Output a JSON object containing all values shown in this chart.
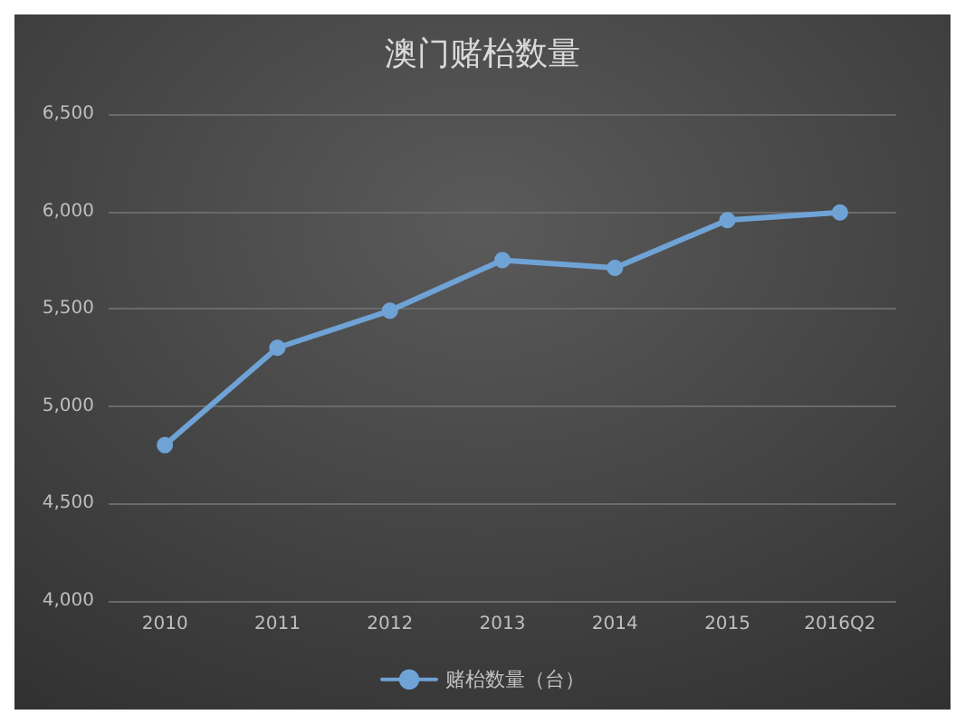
{
  "chart_data": {
    "type": "line",
    "title": "澳门赌枱数量",
    "categories": [
      "2010",
      "2011",
      "2012",
      "2013",
      "2014",
      "2015",
      "2016Q2"
    ],
    "series": [
      {
        "name": "赌枱数量（台）",
        "color": "#6fa3d6",
        "values": [
          4800,
          5300,
          5490,
          5750,
          5710,
          5955,
          5995
        ]
      }
    ],
    "ylim": [
      4000,
      6500
    ],
    "yticks": [
      {
        "value": 4000,
        "label": "4,000"
      },
      {
        "value": 4500,
        "label": "4,500"
      },
      {
        "value": 5000,
        "label": "5,000"
      },
      {
        "value": 5500,
        "label": "5,500"
      },
      {
        "value": 6000,
        "label": "6,000"
      },
      {
        "value": 6500,
        "label": "6,500"
      }
    ],
    "grid": "y",
    "legend": "bottom",
    "marker": "circle"
  }
}
